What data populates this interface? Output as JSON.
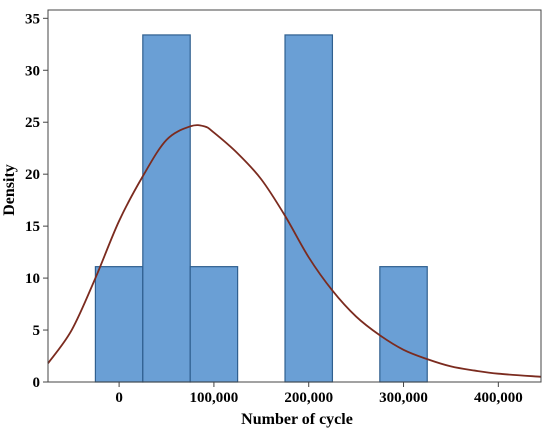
{
  "chart_data": {
    "type": "bar",
    "subtype": "histogram-with-density-curve",
    "xlabel": "Number of cycle",
    "ylabel": "Density",
    "xlim": [
      -75000,
      445000
    ],
    "ylim": [
      0,
      35.8
    ],
    "x_ticks": [
      0,
      100000,
      200000,
      300000,
      400000
    ],
    "x_tick_labels": [
      "0",
      "100,000",
      "200,000",
      "300,000",
      "400,000"
    ],
    "y_ticks": [
      0,
      5,
      10,
      15,
      20,
      25,
      30,
      35
    ],
    "y_tick_labels": [
      "0",
      "5",
      "10",
      "15",
      "20",
      "25",
      "30",
      "35"
    ],
    "bin_width": 50000,
    "bins": [
      {
        "x0": -25000,
        "x1": 25000,
        "density": 11.1
      },
      {
        "x0": 25000,
        "x1": 75000,
        "density": 33.4
      },
      {
        "x0": 75000,
        "x1": 125000,
        "density": 11.1
      },
      {
        "x0": 175000,
        "x1": 225000,
        "density": 33.4
      },
      {
        "x0": 275000,
        "x1": 325000,
        "density": 11.1
      }
    ],
    "curve": {
      "x": [
        -75000,
        -50000,
        -25000,
        0,
        25000,
        50000,
        75000,
        90000,
        100000,
        125000,
        150000,
        175000,
        200000,
        225000,
        250000,
        275000,
        300000,
        325000,
        350000,
        375000,
        400000,
        445000
      ],
      "y": [
        1.8,
        5.0,
        10.0,
        15.5,
        19.8,
        23.3,
        24.6,
        24.6,
        24.0,
        22.0,
        19.5,
        16.0,
        12.0,
        8.8,
        6.3,
        4.5,
        3.1,
        2.2,
        1.5,
        1.1,
        0.8,
        0.5
      ]
    },
    "colors": {
      "bar_fill": "#6a9fd5",
      "bar_stroke": "#2f5f8f",
      "curve": "#7b2b1f",
      "axis": "#444444"
    },
    "grid": false,
    "legend": "none"
  }
}
